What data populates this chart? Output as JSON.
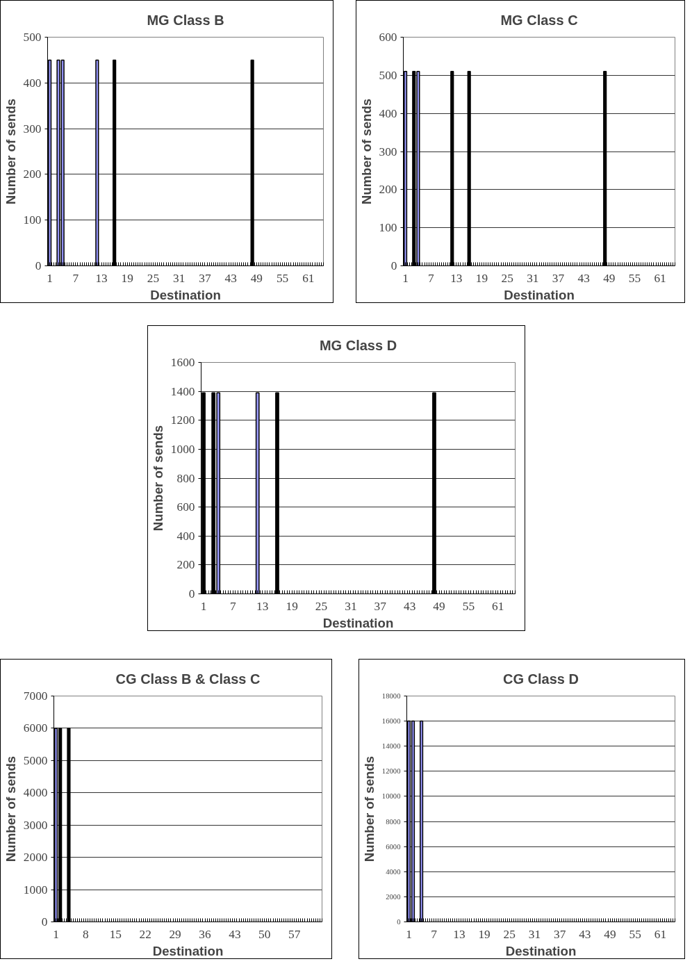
{
  "chart_data": [
    {
      "type": "bar",
      "title": "MG Class B",
      "xlabel": "Destination",
      "ylabel": "Number of sends",
      "categories": [
        "1",
        null,
        null,
        null,
        null,
        null,
        "7",
        null,
        null,
        null,
        null,
        null,
        "13",
        null,
        null,
        null,
        null,
        null,
        "19",
        null,
        null,
        null,
        null,
        null,
        "25",
        null,
        null,
        null,
        null,
        null,
        "31",
        null,
        null,
        null,
        null,
        null,
        "37",
        null,
        null,
        null,
        null,
        null,
        "43",
        null,
        null,
        null,
        null,
        null,
        "49",
        null,
        null,
        null,
        null,
        null,
        "55",
        null,
        null,
        null,
        null,
        null,
        "61",
        null,
        null,
        null
      ],
      "values": [
        450,
        null,
        450,
        450,
        null,
        null,
        null,
        null,
        null,
        null,
        null,
        450,
        null,
        null,
        null,
        450,
        null,
        null,
        null,
        null,
        null,
        null,
        null,
        null,
        null,
        null,
        null,
        null,
        null,
        null,
        null,
        null,
        null,
        null,
        null,
        null,
        null,
        null,
        null,
        null,
        null,
        null,
        null,
        null,
        null,
        null,
        null,
        450,
        null,
        null,
        null,
        null,
        null,
        null,
        null,
        null,
        null,
        null,
        null,
        null,
        null,
        null,
        null,
        null
      ],
      "colors": [
        "#9999ff",
        "#9999ff",
        "#9999ff",
        "#9999ff",
        "#9999ff",
        "#9999ff",
        "#9999ff",
        "#9999ff",
        "#9999ff",
        "#9999ff",
        "#9999ff",
        "#9999ff",
        "#9999ff",
        "#9999ff",
        "#9999ff",
        "#000000",
        "#9999ff",
        "#9999ff",
        "#9999ff",
        "#9999ff",
        "#9999ff",
        "#9999ff",
        "#9999ff",
        "#9999ff",
        "#9999ff",
        "#9999ff",
        "#9999ff",
        "#9999ff",
        "#9999ff",
        "#9999ff",
        "#9999ff",
        "#9999ff",
        "#9999ff",
        "#9999ff",
        "#9999ff",
        "#9999ff",
        "#9999ff",
        "#9999ff",
        "#9999ff",
        "#9999ff",
        "#9999ff",
        "#9999ff",
        "#9999ff",
        "#9999ff",
        "#9999ff",
        "#9999ff",
        "#9999ff",
        "#000000",
        "#9999ff",
        "#9999ff",
        "#9999ff",
        "#9999ff",
        "#9999ff",
        "#9999ff",
        "#9999ff",
        "#9999ff",
        "#9999ff",
        "#9999ff",
        "#9999ff",
        "#9999ff",
        "#9999ff",
        "#9999ff",
        "#9999ff",
        "#9999ff"
      ],
      "ylim": [
        0,
        500
      ],
      "yticks": [
        0,
        100,
        200,
        300,
        400,
        500
      ],
      "grid": "y"
    },
    {
      "type": "bar",
      "title": "MG Class C",
      "xlabel": "Destination",
      "ylabel": "Number of sends",
      "categories": [
        "1",
        null,
        null,
        null,
        null,
        null,
        "7",
        null,
        null,
        null,
        null,
        null,
        "13",
        null,
        null,
        null,
        null,
        null,
        "19",
        null,
        null,
        null,
        null,
        null,
        "25",
        null,
        null,
        null,
        null,
        null,
        "31",
        null,
        null,
        null,
        null,
        null,
        "37",
        null,
        null,
        null,
        null,
        null,
        "43",
        null,
        null,
        null,
        null,
        null,
        "49",
        null,
        null,
        null,
        null,
        null,
        "55",
        null,
        null,
        null,
        null,
        null,
        "61",
        null,
        null,
        null
      ],
      "values": [
        510,
        null,
        510,
        510,
        null,
        null,
        null,
        null,
        null,
        null,
        null,
        510,
        null,
        null,
        null,
        510,
        null,
        null,
        null,
        null,
        null,
        null,
        null,
        null,
        null,
        null,
        null,
        null,
        null,
        null,
        null,
        null,
        null,
        null,
        null,
        null,
        null,
        null,
        null,
        null,
        null,
        null,
        null,
        null,
        null,
        null,
        null,
        510,
        null,
        null,
        null,
        null,
        null,
        null,
        null,
        null,
        null,
        null,
        null,
        null,
        null,
        null,
        null,
        null
      ],
      "colors": [
        "#9999ff",
        "#9999ff",
        "#000000",
        "#9999ff",
        "#9999ff",
        "#9999ff",
        "#9999ff",
        "#9999ff",
        "#9999ff",
        "#9999ff",
        "#9999ff",
        "#000000",
        "#9999ff",
        "#9999ff",
        "#9999ff",
        "#000000",
        "#9999ff",
        "#9999ff",
        "#9999ff",
        "#9999ff",
        "#9999ff",
        "#9999ff",
        "#9999ff",
        "#9999ff",
        "#9999ff",
        "#9999ff",
        "#9999ff",
        "#9999ff",
        "#9999ff",
        "#9999ff",
        "#9999ff",
        "#9999ff",
        "#9999ff",
        "#9999ff",
        "#9999ff",
        "#9999ff",
        "#9999ff",
        "#9999ff",
        "#9999ff",
        "#9999ff",
        "#9999ff",
        "#9999ff",
        "#9999ff",
        "#9999ff",
        "#9999ff",
        "#9999ff",
        "#9999ff",
        "#000000",
        "#9999ff",
        "#9999ff",
        "#9999ff",
        "#9999ff",
        "#9999ff",
        "#9999ff",
        "#9999ff",
        "#9999ff",
        "#9999ff",
        "#9999ff",
        "#9999ff",
        "#9999ff",
        "#9999ff",
        "#9999ff",
        "#9999ff",
        "#9999ff"
      ],
      "ylim": [
        0,
        600
      ],
      "yticks": [
        0,
        100,
        200,
        300,
        400,
        500,
        600
      ],
      "grid": "y"
    },
    {
      "type": "bar",
      "title": "MG Class D",
      "xlabel": "Destination",
      "ylabel": "Number of sends",
      "categories": [
        "1",
        null,
        null,
        null,
        null,
        null,
        "7",
        null,
        null,
        null,
        null,
        null,
        "13",
        null,
        null,
        null,
        null,
        null,
        "19",
        null,
        null,
        null,
        null,
        null,
        "25",
        null,
        null,
        null,
        null,
        null,
        "31",
        null,
        null,
        null,
        null,
        null,
        "37",
        null,
        null,
        null,
        null,
        null,
        "43",
        null,
        null,
        null,
        null,
        null,
        "49",
        null,
        null,
        null,
        null,
        null,
        "55",
        null,
        null,
        null,
        null,
        null,
        "61",
        null,
        null,
        null
      ],
      "values": [
        1390,
        null,
        1390,
        1390,
        null,
        null,
        null,
        null,
        null,
        null,
        null,
        1390,
        null,
        null,
        null,
        1390,
        null,
        null,
        null,
        null,
        null,
        null,
        null,
        null,
        null,
        null,
        null,
        null,
        null,
        null,
        null,
        null,
        null,
        null,
        null,
        null,
        null,
        null,
        null,
        null,
        null,
        null,
        null,
        null,
        null,
        null,
        null,
        1390,
        null,
        null,
        null,
        null,
        null,
        null,
        null,
        null,
        null,
        null,
        null,
        null,
        null,
        null,
        null,
        null
      ],
      "colors": [
        "#000000",
        "#9999ff",
        "#000000",
        "#9999ff",
        "#9999ff",
        "#9999ff",
        "#9999ff",
        "#9999ff",
        "#9999ff",
        "#9999ff",
        "#9999ff",
        "#9999ff",
        "#9999ff",
        "#9999ff",
        "#9999ff",
        "#000000",
        "#9999ff",
        "#9999ff",
        "#9999ff",
        "#9999ff",
        "#9999ff",
        "#9999ff",
        "#9999ff",
        "#9999ff",
        "#9999ff",
        "#9999ff",
        "#9999ff",
        "#9999ff",
        "#9999ff",
        "#9999ff",
        "#9999ff",
        "#9999ff",
        "#9999ff",
        "#9999ff",
        "#9999ff",
        "#9999ff",
        "#9999ff",
        "#9999ff",
        "#9999ff",
        "#9999ff",
        "#9999ff",
        "#9999ff",
        "#9999ff",
        "#9999ff",
        "#9999ff",
        "#9999ff",
        "#9999ff",
        "#000000",
        "#9999ff",
        "#9999ff",
        "#9999ff",
        "#9999ff",
        "#9999ff",
        "#9999ff",
        "#9999ff",
        "#9999ff",
        "#9999ff",
        "#9999ff",
        "#9999ff",
        "#9999ff",
        "#9999ff",
        "#9999ff",
        "#9999ff",
        "#9999ff"
      ],
      "ylim": [
        0,
        1600
      ],
      "yticks": [
        0,
        200,
        400,
        600,
        800,
        1000,
        1200,
        1400,
        1600
      ],
      "grid": "y"
    },
    {
      "type": "bar",
      "title": "CG Class B & Class C",
      "xlabel": "Destination",
      "ylabel": "Number of sends",
      "categories": [
        "1",
        null,
        null,
        null,
        null,
        null,
        null,
        "8",
        null,
        null,
        null,
        null,
        null,
        null,
        "15",
        null,
        null,
        null,
        null,
        null,
        null,
        "22",
        null,
        null,
        null,
        null,
        null,
        null,
        "29",
        null,
        null,
        null,
        null,
        null,
        null,
        "36",
        null,
        null,
        null,
        null,
        null,
        null,
        "43",
        null,
        null,
        null,
        null,
        null,
        null,
        "50",
        null,
        null,
        null,
        null,
        null,
        null,
        "57",
        null,
        null,
        null,
        null,
        null,
        null
      ],
      "values": [
        6000,
        6000,
        null,
        6000,
        null,
        null,
        null,
        null,
        null,
        null,
        null,
        null,
        null,
        null,
        null,
        null,
        null,
        null,
        null,
        null,
        null,
        null,
        null,
        null,
        null,
        null,
        null,
        null,
        null,
        null,
        null,
        null,
        null,
        null,
        null,
        null,
        null,
        null,
        null,
        null,
        null,
        null,
        null,
        null,
        null,
        null,
        null,
        null,
        null,
        null,
        null,
        null,
        null,
        null,
        null,
        null,
        null,
        null,
        null,
        null,
        null,
        null,
        null
      ],
      "colors": [
        "#9999ff",
        "#000000",
        "#9999ff",
        "#000000",
        "#9999ff",
        "#9999ff",
        "#9999ff",
        "#9999ff",
        "#9999ff",
        "#9999ff",
        "#9999ff",
        "#9999ff",
        "#9999ff",
        "#9999ff",
        "#9999ff",
        "#9999ff",
        "#9999ff",
        "#9999ff",
        "#9999ff",
        "#9999ff",
        "#9999ff",
        "#9999ff",
        "#9999ff",
        "#9999ff",
        "#9999ff",
        "#9999ff",
        "#9999ff",
        "#9999ff",
        "#9999ff",
        "#9999ff",
        "#9999ff",
        "#9999ff",
        "#9999ff",
        "#9999ff",
        "#9999ff",
        "#9999ff",
        "#9999ff",
        "#9999ff",
        "#9999ff",
        "#9999ff",
        "#9999ff",
        "#9999ff",
        "#9999ff",
        "#9999ff",
        "#9999ff",
        "#9999ff",
        "#9999ff",
        "#9999ff",
        "#9999ff",
        "#9999ff",
        "#9999ff",
        "#9999ff",
        "#9999ff",
        "#9999ff",
        "#9999ff",
        "#9999ff",
        "#9999ff",
        "#9999ff",
        "#9999ff",
        "#9999ff",
        "#9999ff",
        "#9999ff",
        "#9999ff"
      ],
      "ylim": [
        0,
        7000
      ],
      "yticks": [
        0,
        1000,
        2000,
        3000,
        4000,
        5000,
        6000,
        7000
      ],
      "grid": "y"
    },
    {
      "type": "bar",
      "title": "CG Class D",
      "xlabel": "Destination",
      "ylabel": "Number of sends",
      "categories": [
        "1",
        null,
        null,
        null,
        null,
        null,
        "7",
        null,
        null,
        null,
        null,
        null,
        "13",
        null,
        null,
        null,
        null,
        null,
        "19",
        null,
        null,
        null,
        null,
        null,
        "25",
        null,
        null,
        null,
        null,
        null,
        "31",
        null,
        null,
        null,
        null,
        null,
        "37",
        null,
        null,
        null,
        null,
        null,
        "43",
        null,
        null,
        null,
        null,
        null,
        "49",
        null,
        null,
        null,
        null,
        null,
        "55",
        null,
        null,
        null,
        null,
        null,
        "61",
        null,
        null,
        null
      ],
      "values": [
        16000,
        16000,
        null,
        16000,
        null,
        null,
        null,
        null,
        null,
        null,
        null,
        null,
        null,
        null,
        null,
        null,
        null,
        null,
        null,
        null,
        null,
        null,
        null,
        null,
        null,
        null,
        null,
        null,
        null,
        null,
        null,
        null,
        null,
        null,
        null,
        null,
        null,
        null,
        null,
        null,
        null,
        null,
        null,
        null,
        null,
        null,
        null,
        null,
        null,
        null,
        null,
        null,
        null,
        null,
        null,
        null,
        null,
        null,
        null,
        null,
        null,
        null,
        null,
        null
      ],
      "color": "#9999ff",
      "ylim": [
        0,
        18000
      ],
      "yticks": [
        0,
        2000,
        4000,
        6000,
        8000,
        10000,
        12000,
        14000,
        16000,
        18000
      ],
      "grid": "y"
    }
  ]
}
